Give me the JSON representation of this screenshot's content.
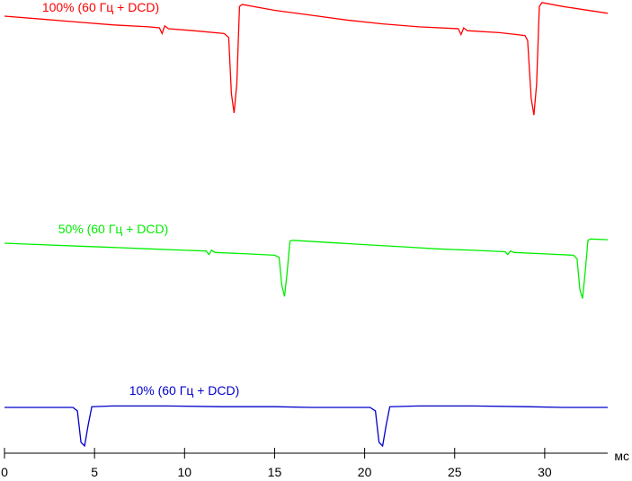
{
  "chart_data": {
    "type": "line",
    "title": "",
    "xlabel": "мс",
    "ylabel": "",
    "xlim": [
      0,
      33.5
    ],
    "x_ticks": [
      {
        "value": 0,
        "label": "0"
      },
      {
        "value": 5,
        "label": "5"
      },
      {
        "value": 10,
        "label": "10"
      },
      {
        "value": 15,
        "label": "15"
      },
      {
        "value": 20,
        "label": "20"
      },
      {
        "value": 25,
        "label": "25"
      },
      {
        "value": 30,
        "label": "30"
      }
    ],
    "grid": false,
    "legend": "inline labels above each trace",
    "series": [
      {
        "name": "100% (60 Гц + DCD)",
        "color": "#ff0000",
        "points": [
          [
            0,
            0.0
          ],
          [
            2.0,
            -0.03
          ],
          [
            4.0,
            -0.06
          ],
          [
            6.0,
            -0.09
          ],
          [
            8.0,
            -0.11
          ],
          [
            8.6,
            -0.12
          ],
          [
            8.75,
            -0.18
          ],
          [
            8.9,
            -0.1
          ],
          [
            9.1,
            -0.13
          ],
          [
            10.5,
            -0.15
          ],
          [
            12.2,
            -0.18
          ],
          [
            12.45,
            -0.22
          ],
          [
            12.6,
            -0.8
          ],
          [
            12.75,
            -1.0
          ],
          [
            12.9,
            -0.7
          ],
          [
            13.05,
            0.1
          ],
          [
            13.2,
            0.12
          ],
          [
            15.0,
            0.06
          ],
          [
            17.0,
            0.01
          ],
          [
            19.0,
            -0.04
          ],
          [
            21.0,
            -0.08
          ],
          [
            23.0,
            -0.11
          ],
          [
            25.2,
            -0.13
          ],
          [
            25.35,
            -0.19
          ],
          [
            25.5,
            -0.12
          ],
          [
            25.7,
            -0.15
          ],
          [
            27.5,
            -0.17
          ],
          [
            28.9,
            -0.2
          ],
          [
            29.05,
            -0.25
          ],
          [
            29.25,
            -0.85
          ],
          [
            29.4,
            -1.02
          ],
          [
            29.55,
            -0.7
          ],
          [
            29.7,
            0.1
          ],
          [
            29.85,
            0.14
          ],
          [
            31.0,
            0.1
          ],
          [
            33.5,
            0.03
          ]
        ]
      },
      {
        "name": "50% (60 Гц + DCD)",
        "color": "#00ee00",
        "points": [
          [
            0,
            0.0
          ],
          [
            2.0,
            -0.02
          ],
          [
            4.0,
            -0.04
          ],
          [
            6.0,
            -0.06
          ],
          [
            8.0,
            -0.08
          ],
          [
            10.0,
            -0.1
          ],
          [
            11.2,
            -0.11
          ],
          [
            11.35,
            -0.16
          ],
          [
            11.5,
            -0.1
          ],
          [
            11.7,
            -0.13
          ],
          [
            13.5,
            -0.15
          ],
          [
            15.0,
            -0.17
          ],
          [
            15.25,
            -0.2
          ],
          [
            15.4,
            -0.6
          ],
          [
            15.55,
            -0.75
          ],
          [
            15.7,
            -0.4
          ],
          [
            15.85,
            0.03
          ],
          [
            16.0,
            0.04
          ],
          [
            18.0,
            0.01
          ],
          [
            20.0,
            -0.02
          ],
          [
            22.0,
            -0.05
          ],
          [
            24.0,
            -0.08
          ],
          [
            26.0,
            -0.1
          ],
          [
            27.8,
            -0.12
          ],
          [
            27.95,
            -0.16
          ],
          [
            28.1,
            -0.11
          ],
          [
            28.3,
            -0.13
          ],
          [
            30.0,
            -0.15
          ],
          [
            31.6,
            -0.17
          ],
          [
            31.8,
            -0.22
          ],
          [
            31.95,
            -0.65
          ],
          [
            32.1,
            -0.78
          ],
          [
            32.25,
            -0.4
          ],
          [
            32.4,
            0.04
          ],
          [
            32.55,
            0.06
          ],
          [
            33.5,
            0.05
          ]
        ]
      },
      {
        "name": "10% (60 Гц + DCD)",
        "color": "#0000cc",
        "points": [
          [
            0,
            0.0
          ],
          [
            2.0,
            0.0
          ],
          [
            3.8,
            0.0
          ],
          [
            4.05,
            -0.05
          ],
          [
            4.25,
            -0.5
          ],
          [
            4.45,
            -0.55
          ],
          [
            4.65,
            -0.25
          ],
          [
            4.85,
            0.01
          ],
          [
            6.0,
            0.02
          ],
          [
            9.0,
            0.02
          ],
          [
            12.0,
            0.01
          ],
          [
            15.0,
            0.01
          ],
          [
            17.0,
            0.0
          ],
          [
            20.3,
            0.0
          ],
          [
            20.6,
            -0.05
          ],
          [
            20.8,
            -0.5
          ],
          [
            21.0,
            -0.55
          ],
          [
            21.2,
            -0.25
          ],
          [
            21.4,
            0.01
          ],
          [
            23.0,
            0.02
          ],
          [
            26.0,
            0.02
          ],
          [
            29.0,
            0.01
          ],
          [
            31.0,
            0.0
          ],
          [
            33.5,
            0.0
          ]
        ]
      }
    ]
  }
}
